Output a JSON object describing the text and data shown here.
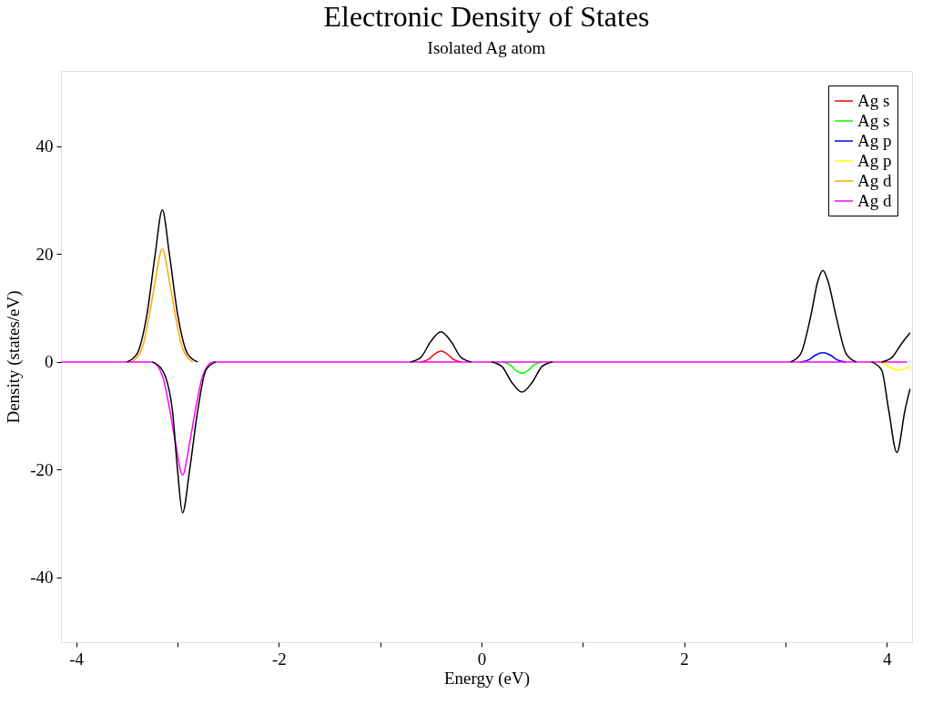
{
  "chart_data": {
    "type": "line",
    "title": "Electronic Density of States",
    "subtitle": "Isolated Ag atom",
    "xlabel": "Energy (eV)",
    "ylabel": "Density (states/eV)",
    "xlim": [
      -4.15,
      4.25
    ],
    "ylim": [
      -52,
      54
    ],
    "xticks": [
      -4,
      {
        "value": -3,
        "label": null
      },
      -2,
      {
        "value": -1,
        "label": null
      },
      0,
      {
        "value": 1,
        "label": null
      },
      2,
      {
        "value": 3,
        "label": null
      },
      4
    ],
    "yticks": [
      -40,
      -20,
      0,
      20,
      40
    ],
    "grid": false,
    "legend": "top right",
    "marker": "none",
    "line_style": "solid",
    "series": [
      {
        "name": "Ag s",
        "color": "#ff0000",
        "x": [
          -0.6,
          -0.52,
          -0.46,
          -0.4,
          -0.34,
          -0.28,
          -0.2
        ],
        "values": [
          0,
          0.5,
          1.5,
          2,
          1.5,
          0.5,
          0
        ]
      },
      {
        "name": "Ag s",
        "color": "#00ff00",
        "x": [
          0.2,
          0.28,
          0.34,
          0.4,
          0.46,
          0.52,
          0.6
        ],
        "values": [
          0,
          -0.5,
          -1.6,
          -2.1,
          -1.6,
          -0.5,
          0
        ]
      },
      {
        "name": "Ag p",
        "color": "#0000ff",
        "x": [
          3.15,
          3.23,
          3.3,
          3.37,
          3.44,
          3.51,
          3.6
        ],
        "values": [
          0,
          0.4,
          1.3,
          1.7,
          1.3,
          0.4,
          0
        ]
      },
      {
        "name": "Ag p",
        "color": "#ffff00",
        "x": [
          3.92,
          3.98,
          4.05,
          4.12,
          4.19,
          4.23
        ],
        "values": [
          0,
          -0.4,
          -1.2,
          -1.5,
          -1.1,
          -0.7
        ]
      },
      {
        "name": "Ag d",
        "color": "#ffa500",
        "x": [
          -3.45,
          -3.35,
          -3.28,
          -3.22,
          -3.15,
          -3.08,
          -3.02,
          -2.95,
          -2.85
        ],
        "values": [
          0,
          2.5,
          8.5,
          15,
          21,
          15,
          8.5,
          2.5,
          0
        ]
      },
      {
        "name": "Ag d",
        "color": "#ff00ff",
        "x": [
          -4.15,
          -3.25,
          -3.15,
          -3.08,
          -3.02,
          -2.95,
          -2.88,
          -2.82,
          -2.75,
          -2.65,
          4.2
        ],
        "values": [
          0,
          0,
          -2.5,
          -8.5,
          -15,
          -21,
          -15,
          -8.5,
          -2.5,
          0,
          0
        ]
      },
      {
        "color": "#000000",
        "x": [
          -3.5,
          -3.4,
          -3.3,
          -3.22,
          -3.15,
          -3.08,
          -3.0,
          -2.9,
          -2.8,
          -1.5,
          -0.7,
          -0.6,
          -0.5,
          -0.4,
          -0.3,
          -0.2,
          -0.1,
          1.5,
          3.05,
          3.15,
          3.25,
          3.32,
          3.37,
          3.42,
          3.5,
          3.6,
          3.7,
          3.8,
          3.95,
          4.05,
          4.15,
          4.23
        ],
        "values": [
          0,
          1.5,
          9,
          20,
          28.2,
          20,
          9,
          1.5,
          0,
          null,
          0,
          0.8,
          3.8,
          5.6,
          3.8,
          0.8,
          0,
          null,
          0,
          1.5,
          8.5,
          15,
          17,
          15,
          8.5,
          1.5,
          0,
          null,
          0,
          0.8,
          3.5,
          5.4
        ]
      },
      {
        "color": "#000000",
        "x": [
          -3.25,
          -3.15,
          -3.05,
          -3.0,
          -2.95,
          -2.88,
          -2.8,
          -2.72,
          -2.62,
          -1.0,
          0.1,
          0.2,
          0.3,
          0.4,
          0.5,
          0.6,
          0.7,
          2.0,
          3.85,
          3.95,
          4.02,
          4.1,
          4.18,
          4.23
        ],
        "values": [
          0,
          -1.5,
          -9,
          -20,
          -28,
          -20,
          -9,
          -1.5,
          0,
          null,
          0,
          -0.8,
          -3.8,
          -5.6,
          -3.8,
          -0.8,
          0,
          null,
          0,
          -1.5,
          -9,
          -16.8,
          -9,
          -5
        ]
      }
    ]
  }
}
